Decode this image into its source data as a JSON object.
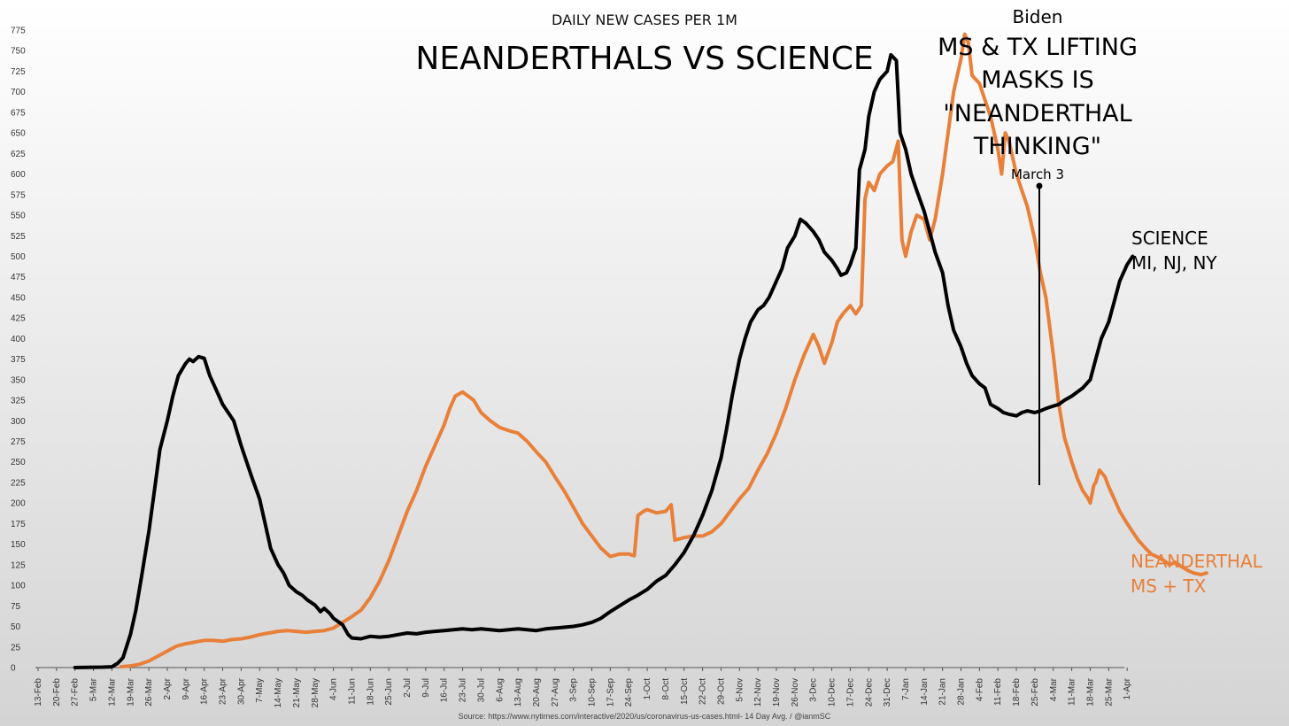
{
  "chart_data": {
    "type": "line",
    "subtitle": "DAILY NEW CASES PER 1M",
    "title": "NEANDERTHALS VS SCIENCE",
    "ylim": [
      0,
      775
    ],
    "y_ticks": [
      0,
      25,
      50,
      75,
      100,
      125,
      150,
      175,
      200,
      225,
      250,
      275,
      300,
      325,
      350,
      375,
      400,
      425,
      450,
      475,
      500,
      525,
      550,
      575,
      600,
      625,
      650,
      675,
      700,
      725,
      750,
      775
    ],
    "categories": [
      "13-Feb",
      "20-Feb",
      "27-Feb",
      "5-Mar",
      "12-Mar",
      "19-Mar",
      "26-Mar",
      "2-Apr",
      "9-Apr",
      "16-Apr",
      "23-Apr",
      "30-Apr",
      "7-May",
      "14-May",
      "21-May",
      "28-May",
      "4-Jun",
      "11-Jun",
      "18-Jun",
      "25-Jun",
      "2-Jul",
      "9-Jul",
      "16-Jul",
      "23-Jul",
      "30-Jul",
      "6-Aug",
      "13-Aug",
      "20-Aug",
      "27-Aug",
      "3-Sep",
      "10-Sep",
      "17-Sep",
      "24-Sep",
      "1-Oct",
      "8-Oct",
      "15-Oct",
      "22-Oct",
      "29-Oct",
      "5-Nov",
      "12-Nov",
      "19-Nov",
      "26-Nov",
      "3-Dec",
      "10-Dec",
      "17-Dec",
      "24-Dec",
      "31-Dec",
      "7-Jan",
      "14-Jan",
      "21-Jan",
      "28-Jan",
      "4-Feb",
      "11-Feb",
      "18-Feb",
      "25-Feb",
      "4-Mar",
      "11-Mar",
      "18-Mar",
      "25-Mar",
      "1-Apr"
    ],
    "series": [
      {
        "name": "SCIENCE MI, NJ, NY",
        "color": "#000000",
        "points": [
          [
            2,
            0
          ],
          [
            3.5,
            0.5
          ],
          [
            4,
            1
          ],
          [
            4.3,
            5
          ],
          [
            4.6,
            12
          ],
          [
            5,
            40
          ],
          [
            5.3,
            70
          ],
          [
            5.6,
            110
          ],
          [
            6,
            165
          ],
          [
            6.3,
            215
          ],
          [
            6.6,
            265
          ],
          [
            7,
            300
          ],
          [
            7.3,
            330
          ],
          [
            7.6,
            355
          ],
          [
            8,
            370
          ],
          [
            8.2,
            375
          ],
          [
            8.4,
            372
          ],
          [
            8.7,
            378
          ],
          [
            9,
            376
          ],
          [
            9.3,
            355
          ],
          [
            9.6,
            340
          ],
          [
            10,
            320
          ],
          [
            10.3,
            310
          ],
          [
            10.6,
            300
          ],
          [
            11,
            270
          ],
          [
            11.3,
            250
          ],
          [
            11.6,
            230
          ],
          [
            12,
            205
          ],
          [
            12.3,
            175
          ],
          [
            12.6,
            145
          ],
          [
            13,
            125
          ],
          [
            13.3,
            115
          ],
          [
            13.6,
            100
          ],
          [
            14,
            92
          ],
          [
            14.3,
            88
          ],
          [
            14.6,
            82
          ],
          [
            15,
            76
          ],
          [
            15.3,
            68
          ],
          [
            15.5,
            72
          ],
          [
            15.8,
            66
          ],
          [
            16,
            60
          ],
          [
            16.5,
            52
          ],
          [
            16.8,
            40
          ],
          [
            17,
            36
          ],
          [
            17.5,
            35
          ],
          [
            18,
            38
          ],
          [
            18.5,
            37
          ],
          [
            19,
            38
          ],
          [
            19.5,
            40
          ],
          [
            20,
            42
          ],
          [
            20.5,
            41
          ],
          [
            21,
            43
          ],
          [
            21.5,
            44
          ],
          [
            22,
            45
          ],
          [
            22.5,
            46
          ],
          [
            23,
            47
          ],
          [
            23.5,
            46
          ],
          [
            24,
            47
          ],
          [
            24.5,
            46
          ],
          [
            25,
            45
          ],
          [
            25.5,
            46
          ],
          [
            26,
            47
          ],
          [
            26.5,
            46
          ],
          [
            27,
            45
          ],
          [
            27.5,
            47
          ],
          [
            28,
            48
          ],
          [
            28.5,
            49
          ],
          [
            29,
            50
          ],
          [
            29.5,
            52
          ],
          [
            30,
            55
          ],
          [
            30.5,
            60
          ],
          [
            31,
            68
          ],
          [
            31.5,
            75
          ],
          [
            32,
            82
          ],
          [
            32.5,
            88
          ],
          [
            33,
            95
          ],
          [
            33.5,
            105
          ],
          [
            34,
            112
          ],
          [
            34.5,
            125
          ],
          [
            35,
            140
          ],
          [
            35.5,
            160
          ],
          [
            36,
            185
          ],
          [
            36.5,
            215
          ],
          [
            37,
            255
          ],
          [
            37.3,
            290
          ],
          [
            37.6,
            330
          ],
          [
            38,
            375
          ],
          [
            38.3,
            400
          ],
          [
            38.6,
            420
          ],
          [
            39,
            435
          ],
          [
            39.3,
            440
          ],
          [
            39.6,
            450
          ],
          [
            40,
            470
          ],
          [
            40.3,
            485
          ],
          [
            40.6,
            510
          ],
          [
            41,
            525
          ],
          [
            41.3,
            545
          ],
          [
            41.6,
            540
          ],
          [
            42,
            530
          ],
          [
            42.3,
            520
          ],
          [
            42.6,
            505
          ],
          [
            43,
            495
          ],
          [
            43.3,
            485
          ],
          [
            43.5,
            477
          ],
          [
            43.8,
            480
          ],
          [
            44,
            490
          ],
          [
            44.3,
            510
          ],
          [
            44.5,
            605
          ],
          [
            44.8,
            630
          ],
          [
            45,
            670
          ],
          [
            45.3,
            700
          ],
          [
            45.6,
            715
          ],
          [
            46,
            725
          ],
          [
            46.2,
            745
          ],
          [
            46.5,
            738
          ],
          [
            46.7,
            650
          ],
          [
            47,
            630
          ],
          [
            47.3,
            600
          ],
          [
            47.6,
            580
          ],
          [
            48,
            555
          ],
          [
            48.3,
            530
          ],
          [
            48.6,
            505
          ],
          [
            49,
            480
          ],
          [
            49.3,
            440
          ],
          [
            49.6,
            410
          ],
          [
            50,
            390
          ],
          [
            50.3,
            370
          ],
          [
            50.6,
            355
          ],
          [
            51,
            345
          ],
          [
            51.3,
            340
          ],
          [
            51.6,
            320
          ],
          [
            52,
            315
          ],
          [
            52.3,
            310
          ],
          [
            52.6,
            308
          ],
          [
            53,
            306
          ],
          [
            53.3,
            310
          ],
          [
            53.6,
            312
          ],
          [
            54,
            310
          ],
          [
            54.3,
            312
          ],
          [
            54.6,
            315
          ],
          [
            55,
            318
          ],
          [
            55.3,
            320
          ],
          [
            55.6,
            325
          ],
          [
            56,
            330
          ],
          [
            56.3,
            335
          ],
          [
            56.6,
            340
          ],
          [
            57,
            350
          ],
          [
            57.3,
            375
          ],
          [
            57.6,
            400
          ],
          [
            58,
            420
          ],
          [
            58.3,
            445
          ],
          [
            58.6,
            470
          ],
          [
            59,
            490
          ],
          [
            59.3,
            500
          ]
        ]
      },
      {
        "name": "NEANDERTHAL MS + TX",
        "color": "#e8803a",
        "points": [
          [
            4.5,
            1
          ],
          [
            5,
            2
          ],
          [
            5.5,
            4
          ],
          [
            6,
            8
          ],
          [
            6.5,
            14
          ],
          [
            7,
            20
          ],
          [
            7.5,
            26
          ],
          [
            8,
            29
          ],
          [
            8.5,
            31
          ],
          [
            9,
            33
          ],
          [
            9.5,
            33
          ],
          [
            10,
            32
          ],
          [
            10.5,
            34
          ],
          [
            11,
            35
          ],
          [
            11.5,
            37
          ],
          [
            12,
            40
          ],
          [
            12.5,
            42
          ],
          [
            13,
            44
          ],
          [
            13.5,
            45
          ],
          [
            14,
            44
          ],
          [
            14.5,
            43
          ],
          [
            15,
            44
          ],
          [
            15.5,
            45
          ],
          [
            16,
            48
          ],
          [
            16.5,
            55
          ],
          [
            17,
            62
          ],
          [
            17.5,
            70
          ],
          [
            18,
            85
          ],
          [
            18.5,
            105
          ],
          [
            19,
            130
          ],
          [
            19.5,
            160
          ],
          [
            20,
            190
          ],
          [
            20.5,
            215
          ],
          [
            21,
            245
          ],
          [
            21.5,
            270
          ],
          [
            22,
            295
          ],
          [
            22.3,
            315
          ],
          [
            22.6,
            330
          ],
          [
            23,
            335
          ],
          [
            23.3,
            330
          ],
          [
            23.6,
            325
          ],
          [
            24,
            310
          ],
          [
            24.5,
            300
          ],
          [
            25,
            292
          ],
          [
            25.5,
            288
          ],
          [
            26,
            285
          ],
          [
            26.5,
            275
          ],
          [
            27,
            262
          ],
          [
            27.5,
            250
          ],
          [
            28,
            232
          ],
          [
            28.5,
            215
          ],
          [
            29,
            195
          ],
          [
            29.5,
            175
          ],
          [
            30,
            160
          ],
          [
            30.5,
            145
          ],
          [
            31,
            135
          ],
          [
            31.5,
            138
          ],
          [
            32,
            138
          ],
          [
            32.3,
            136
          ],
          [
            32.5,
            185
          ],
          [
            32.8,
            190
          ],
          [
            33,
            192
          ],
          [
            33.5,
            188
          ],
          [
            34,
            190
          ],
          [
            34.3,
            198
          ],
          [
            34.5,
            155
          ],
          [
            35,
            158
          ],
          [
            35.5,
            160
          ],
          [
            36,
            160
          ],
          [
            36.5,
            165
          ],
          [
            37,
            175
          ],
          [
            37.5,
            190
          ],
          [
            38,
            205
          ],
          [
            38.5,
            218
          ],
          [
            39,
            240
          ],
          [
            39.5,
            260
          ],
          [
            40,
            285
          ],
          [
            40.5,
            315
          ],
          [
            41,
            350
          ],
          [
            41.5,
            380
          ],
          [
            42,
            405
          ],
          [
            42.3,
            390
          ],
          [
            42.6,
            370
          ],
          [
            43,
            395
          ],
          [
            43.3,
            420
          ],
          [
            43.6,
            430
          ],
          [
            44,
            440
          ],
          [
            44.3,
            430
          ],
          [
            44.6,
            440
          ],
          [
            44.8,
            570
          ],
          [
            45,
            590
          ],
          [
            45.3,
            580
          ],
          [
            45.6,
            600
          ],
          [
            46,
            610
          ],
          [
            46.3,
            615
          ],
          [
            46.6,
            640
          ],
          [
            46.8,
            520
          ],
          [
            47,
            500
          ],
          [
            47.3,
            530
          ],
          [
            47.6,
            550
          ],
          [
            48,
            545
          ],
          [
            48.3,
            520
          ],
          [
            48.6,
            545
          ],
          [
            49,
            600
          ],
          [
            49.3,
            650
          ],
          [
            49.6,
            700
          ],
          [
            50,
            740
          ],
          [
            50.2,
            770
          ],
          [
            50.4,
            760
          ],
          [
            50.6,
            720
          ],
          [
            51,
            710
          ],
          [
            51.3,
            690
          ],
          [
            51.6,
            670
          ],
          [
            52,
            630
          ],
          [
            52.2,
            600
          ],
          [
            52.4,
            650
          ],
          [
            52.6,
            640
          ],
          [
            53,
            600
          ],
          [
            53.3,
            580
          ],
          [
            53.6,
            560
          ],
          [
            54,
            520
          ],
          [
            54.3,
            480
          ],
          [
            54.6,
            450
          ],
          [
            55,
            380
          ],
          [
            55.3,
            320
          ],
          [
            55.6,
            280
          ],
          [
            56,
            250
          ],
          [
            56.3,
            230
          ],
          [
            56.6,
            215
          ],
          [
            56.9,
            205
          ],
          [
            57,
            200
          ],
          [
            57.2,
            222
          ],
          [
            57.3,
            225
          ],
          [
            57.5,
            240
          ],
          [
            57.8,
            232
          ],
          [
            58,
            220
          ],
          [
            58.3,
            205
          ],
          [
            58.6,
            190
          ],
          [
            59,
            175
          ],
          [
            59.3,
            165
          ],
          [
            59.6,
            155
          ],
          [
            60,
            145
          ],
          [
            60.3,
            138
          ],
          [
            60.6,
            135
          ],
          [
            61,
            130
          ],
          [
            61.3,
            125
          ],
          [
            61.6,
            128
          ],
          [
            62,
            122
          ],
          [
            62.3,
            118
          ],
          [
            62.6,
            115
          ],
          [
            63,
            113
          ],
          [
            63.3,
            115
          ]
        ]
      }
    ],
    "annotations": {
      "biden_line1": "Biden",
      "biden_quote_lines": [
        "MS & TX LIFTING",
        "MASKS IS",
        "\"NEANDERTHAL",
        "THINKING\""
      ],
      "march3_label": "March 3",
      "science_line1": "SCIENCE",
      "science_line2": "MI, NJ, NY",
      "neanderthal_line1": "NEANDERTHAL",
      "neanderthal_line2": "MS + TX"
    },
    "source": "Source: https://www.nytimes.com/interactive/2020/us/coronavirus-us-cases.html- 14 Day Avg. / @ianmSC"
  }
}
